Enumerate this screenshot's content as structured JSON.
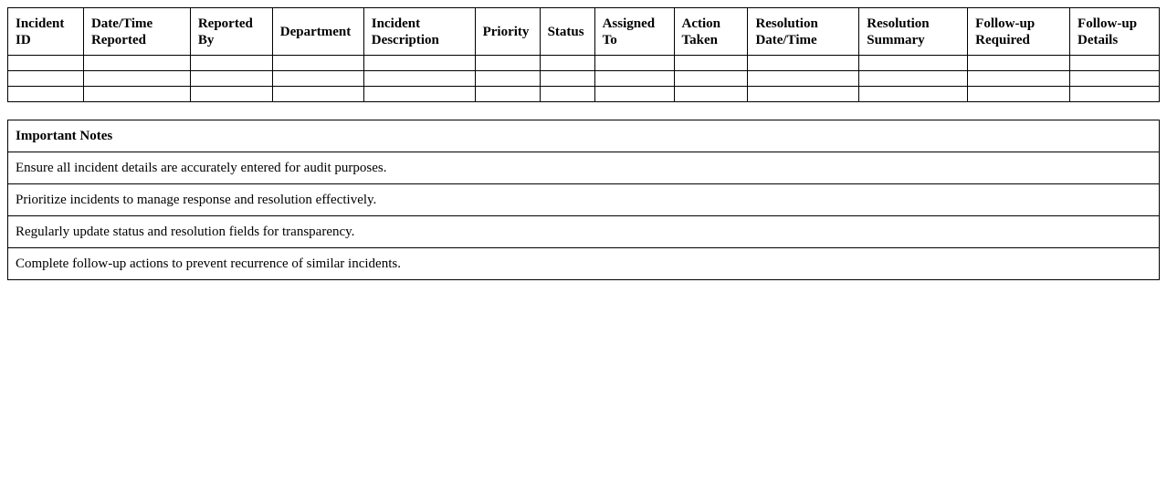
{
  "incident_table": {
    "headers": [
      "Incident ID",
      "Date/Time Reported",
      "Reported By",
      "Department",
      "Incident Description",
      "Priority",
      "Status",
      "Assigned To",
      "Action Taken",
      "Resolution Date/Time",
      "Resolution Summary",
      "Follow-up Required",
      "Follow-up Details"
    ],
    "rows": [
      [
        "",
        "",
        "",
        "",
        "",
        "",
        "",
        "",
        "",
        "",
        "",
        "",
        ""
      ],
      [
        "",
        "",
        "",
        "",
        "",
        "",
        "",
        "",
        "",
        "",
        "",
        "",
        ""
      ],
      [
        "",
        "",
        "",
        "",
        "",
        "",
        "",
        "",
        "",
        "",
        "",
        "",
        ""
      ]
    ]
  },
  "notes": {
    "title": "Important Notes",
    "items": [
      "Ensure all incident details are accurately entered for audit purposes.",
      "Prioritize incidents to manage response and resolution effectively.",
      "Regularly update status and resolution fields for transparency.",
      "Complete follow-up actions to prevent recurrence of similar incidents."
    ]
  }
}
